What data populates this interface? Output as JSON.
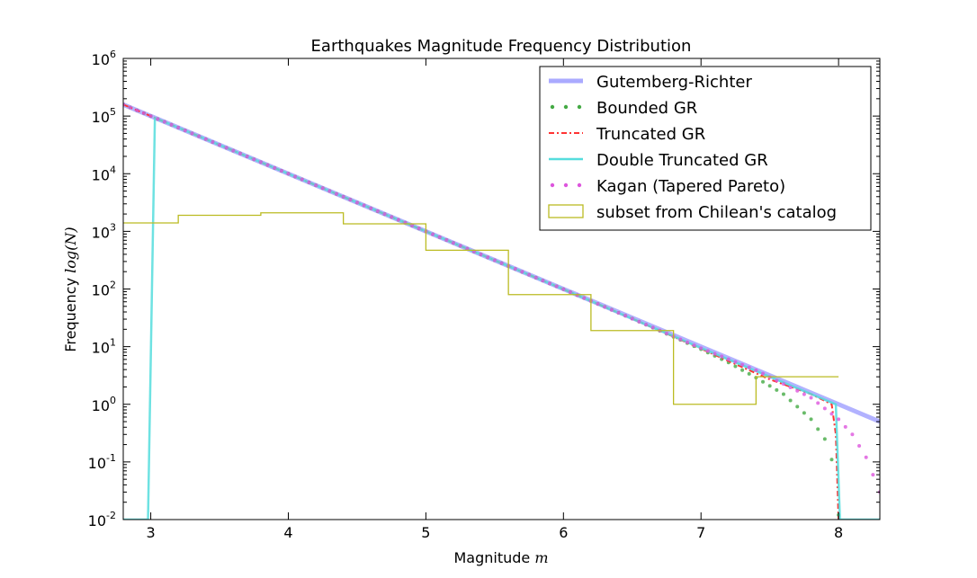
{
  "chart_data": {
    "type": "line",
    "title": "Earthquakes Magnitude Frequency Distribution",
    "xlabel_prefix": "Magnitude ",
    "xlabel_math": "m",
    "ylabel_prefix": "Frequency ",
    "ylabel_math": "log(N)",
    "y_scale": "log",
    "xlim": [
      2.8,
      8.3
    ],
    "ylim": [
      0.01,
      1000000
    ],
    "grid": false,
    "legend_position": "top-right",
    "x_ticks": [
      {
        "value": 3,
        "label": "3"
      },
      {
        "value": 4,
        "label": "4"
      },
      {
        "value": 5,
        "label": "5"
      },
      {
        "value": 6,
        "label": "6"
      },
      {
        "value": 7,
        "label": "7"
      },
      {
        "value": 8,
        "label": "8"
      }
    ],
    "y_ticks": [
      {
        "value": 0.01,
        "base": "10",
        "exp": "-2"
      },
      {
        "value": 0.1,
        "base": "10",
        "exp": "-1"
      },
      {
        "value": 1,
        "base": "10",
        "exp": "0"
      },
      {
        "value": 10,
        "base": "10",
        "exp": "1"
      },
      {
        "value": 100,
        "base": "10",
        "exp": "2"
      },
      {
        "value": 1000,
        "base": "10",
        "exp": "3"
      },
      {
        "value": 10000,
        "base": "10",
        "exp": "4"
      },
      {
        "value": 100000,
        "base": "10",
        "exp": "5"
      },
      {
        "value": 1000000,
        "base": "10",
        "exp": "6"
      }
    ],
    "series": [
      {
        "name": "Gutemberg-Richter",
        "style": "line",
        "color": "#aaaaff",
        "x": [
          2.8,
          3.0,
          3.5,
          4.0,
          4.5,
          5.0,
          5.5,
          6.0,
          6.5,
          7.0,
          7.5,
          8.0,
          8.3
        ],
        "y": [
          158489,
          100000,
          31623,
          10000,
          3162,
          1000,
          316,
          100,
          31.6,
          10,
          3.16,
          1.0,
          0.5
        ]
      },
      {
        "name": "Bounded GR",
        "style": "dots",
        "color": "#44aa44",
        "x": [
          2.8,
          3.0,
          3.5,
          4.0,
          4.5,
          5.0,
          5.5,
          6.0,
          6.5,
          6.8,
          7.0,
          7.2,
          7.4,
          7.6,
          7.8,
          7.9,
          7.95,
          8.0
        ],
        "y": [
          158489,
          100000,
          31622,
          10000,
          3162,
          999,
          315,
          99,
          30.6,
          14.8,
          9,
          5.3,
          2.9,
          1.5,
          0.55,
          0.25,
          0.11,
          0.012
        ]
      },
      {
        "name": "Truncated GR",
        "style": "dashdot",
        "color": "#ff3333",
        "x": [
          2.8,
          3.0,
          3.5,
          4.0,
          4.5,
          5.0,
          5.5,
          6.0,
          6.5,
          7.0,
          7.5,
          7.8,
          7.95,
          7.98,
          8.0
        ],
        "y": [
          158489,
          100000,
          31622,
          10000,
          3162,
          999,
          315,
          99,
          30.6,
          9.2,
          2.7,
          1.5,
          1.0,
          0.3,
          0.01
        ]
      },
      {
        "name": "Double Truncated GR",
        "style": "line",
        "color": "#55dddd",
        "x": [
          2.8,
          2.98,
          3.03,
          3.5,
          4.0,
          4.5,
          5.0,
          5.5,
          6.0,
          6.5,
          7.0,
          7.5,
          7.98,
          8.01,
          8.3
        ],
        "y": [
          0.01,
          0.01,
          93000,
          31622,
          10000,
          3162,
          999,
          315,
          99,
          30.6,
          9.5,
          3.0,
          1.0,
          0.01,
          0.01
        ]
      },
      {
        "name": "Kagan (Tapered Pareto)",
        "style": "dots",
        "color": "#dd55dd",
        "x": [
          2.8,
          3.0,
          3.5,
          4.0,
          4.5,
          5.0,
          5.5,
          6.0,
          6.5,
          7.0,
          7.4,
          7.8,
          8.0,
          8.1,
          8.2,
          8.3
        ],
        "y": [
          158489,
          100000,
          31622,
          10000,
          3162,
          1000,
          316,
          99,
          30.5,
          9.4,
          3.9,
          1.3,
          0.55,
          0.3,
          0.12,
          0.03
        ]
      },
      {
        "name": "subset from Chilean's catalog",
        "style": "step",
        "color": "#bbbb22",
        "bin_edges": [
          2.8,
          3.2,
          3.8,
          4.4,
          5.0,
          5.6,
          6.2,
          6.8,
          7.4,
          8.0
        ],
        "counts": [
          1400,
          1900,
          2100,
          1350,
          470,
          80,
          19,
          1,
          3
        ]
      }
    ]
  }
}
